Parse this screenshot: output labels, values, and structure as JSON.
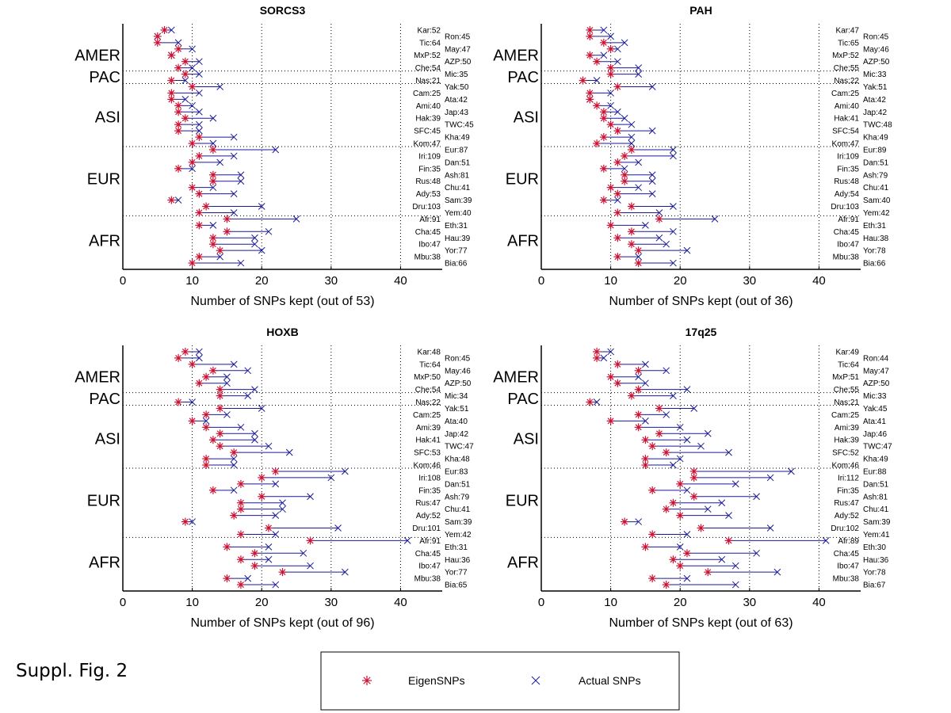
{
  "footer": {
    "figure_label": "Suppl. Fig. 2"
  },
  "legend": {
    "eigen_label": "EigenSNPs",
    "actual_label": "Actual SNPs",
    "eigen_color": "#cc1133",
    "actual_color": "#1a1a99"
  },
  "chart_data": [
    {
      "type": "dot-range",
      "title": "SORCS3",
      "xlabel": "Number of SNPs kept (out of 53)",
      "xlim": [
        0,
        46
      ],
      "xticks": [
        0,
        10,
        20,
        30,
        40
      ],
      "grid": "dotted",
      "groups": [
        "AMER",
        "PAC",
        "ASI",
        "EUR",
        "AFR"
      ],
      "populations": [
        "Kar:52",
        "Ron:45",
        "Tic:64",
        "May:47",
        "MxP:52",
        "AZP:50",
        "Che:54",
        "Mic:35",
        "Nas:21",
        "Yak:50",
        "Cam:25",
        "Ata:42",
        "Ami:40",
        "Jap:43",
        "Hak:39",
        "TWC:45",
        "SFC:45",
        "Kha:49",
        "Kom:47",
        "Eur:87",
        "Iri:109",
        "Dan:51",
        "Fin:35",
        "Ash:81",
        "Rus:48",
        "Chu:41",
        "Ady:53",
        "Sam:39",
        "Dru:103",
        "Yem:40",
        "Afr:91",
        "Eth:31",
        "Cha:45",
        "Hau:39",
        "Ibo:47",
        "Yor:77",
        "Mbu:38",
        "Bia:66"
      ],
      "eigen": [
        6,
        5,
        5,
        8,
        7,
        9,
        8,
        9,
        7,
        10,
        7,
        7,
        8,
        8,
        9,
        8,
        8,
        11,
        10,
        13,
        11,
        10,
        8,
        13,
        13,
        10,
        11,
        7,
        12,
        11,
        15,
        11,
        15,
        13,
        13,
        14,
        11,
        10
      ],
      "actual": [
        7,
        5,
        8,
        10,
        7,
        11,
        10,
        11,
        9,
        14,
        11,
        9,
        10,
        11,
        13,
        11,
        11,
        16,
        13,
        22,
        16,
        14,
        10,
        17,
        17,
        13,
        16,
        8,
        20,
        16,
        25,
        13,
        21,
        19,
        19,
        20,
        14,
        17
      ]
    },
    {
      "type": "dot-range",
      "title": "PAH",
      "xlabel": "Number of SNPs kept (out of 36)",
      "xlim": [
        0,
        46
      ],
      "xticks": [
        0,
        10,
        20,
        30,
        40
      ],
      "grid": "dotted",
      "groups": [
        "AMER",
        "PAC",
        "ASI",
        "EUR",
        "AFR"
      ],
      "populations": [
        "Kar:47",
        "Ron:45",
        "Tic:65",
        "May:46",
        "MxP:52",
        "AZP:50",
        "Che:55",
        "Mic:33",
        "Nas:22",
        "Yak:51",
        "Cam:25",
        "Ata:42",
        "Ami:40",
        "Jap:42",
        "Hak:41",
        "TWC:48",
        "SFC:54",
        "Kha:49",
        "Kom:47",
        "Eur:89",
        "Iri:109",
        "Dan:51",
        "Fin:35",
        "Ash:79",
        "Rus:48",
        "Chu:41",
        "Ady:54",
        "Sam:40",
        "Dru:103",
        "Yem:42",
        "Afr:91",
        "Eth:31",
        "Cha:45",
        "Hau:38",
        "Ibo:47",
        "Yor:78",
        "Mbu:38",
        "Bia:66"
      ],
      "eigen": [
        7,
        7,
        9,
        10,
        7,
        8,
        10,
        10,
        6,
        11,
        7,
        7,
        8,
        9,
        9,
        10,
        11,
        9,
        8,
        13,
        12,
        11,
        9,
        12,
        12,
        10,
        11,
        9,
        13,
        11,
        17,
        10,
        13,
        11,
        13,
        14,
        11,
        14
      ],
      "actual": [
        9,
        10,
        12,
        11,
        9,
        11,
        14,
        14,
        8,
        16,
        10,
        7,
        10,
        11,
        12,
        13,
        16,
        13,
        13,
        19,
        19,
        14,
        12,
        16,
        16,
        14,
        16,
        11,
        19,
        17,
        25,
        15,
        19,
        17,
        18,
        21,
        14,
        19
      ]
    },
    {
      "type": "dot-range",
      "title": "HOXB",
      "xlabel": "Number of SNPs kept (out of 96)",
      "xlim": [
        0,
        46
      ],
      "xticks": [
        0,
        10,
        20,
        30,
        40
      ],
      "grid": "dotted",
      "groups": [
        "AMER",
        "PAC",
        "ASI",
        "EUR",
        "AFR"
      ],
      "populations": [
        "Kar:48",
        "Ron:45",
        "Tic:64",
        "May:46",
        "MxP:50",
        "AZP:50",
        "Che:54",
        "Mic:34",
        "Nas:22",
        "Yak:51",
        "Cam:25",
        "Ata:40",
        "Ami:39",
        "Jap:42",
        "Hak:41",
        "TWC:47",
        "SFC:53",
        "Kha:48",
        "Kom:46",
        "Eur:83",
        "Iri:108",
        "Dan:51",
        "Fin:35",
        "Ash:79",
        "Rus:47",
        "Chu:41",
        "Ady:52",
        "Sam:39",
        "Dru:101",
        "Yem:42",
        "Afr:91",
        "Eth:31",
        "Cha:45",
        "Hau:36",
        "Ibo:47",
        "Yor:77",
        "Mbu:38",
        "Bia:65"
      ],
      "eigen": [
        9,
        8,
        10,
        13,
        12,
        11,
        14,
        14,
        8,
        14,
        12,
        10,
        12,
        14,
        13,
        14,
        16,
        12,
        12,
        22,
        20,
        17,
        13,
        20,
        17,
        17,
        16,
        9,
        21,
        17,
        27,
        15,
        19,
        17,
        19,
        23,
        15,
        17
      ],
      "actual": [
        11,
        11,
        16,
        18,
        15,
        15,
        19,
        18,
        10,
        20,
        15,
        12,
        17,
        19,
        19,
        21,
        24,
        16,
        16,
        32,
        30,
        22,
        16,
        27,
        23,
        23,
        22,
        10,
        31,
        22,
        41,
        21,
        26,
        21,
        27,
        32,
        18,
        22
      ]
    },
    {
      "type": "dot-range",
      "title": "17q25",
      "xlabel": "Number of SNPs kept (out of 63)",
      "xlim": [
        0,
        46
      ],
      "xticks": [
        0,
        10,
        20,
        30,
        40
      ],
      "grid": "dotted",
      "groups": [
        "AMER",
        "PAC",
        "ASI",
        "EUR",
        "AFR"
      ],
      "populations": [
        "Kar:49",
        "Ron:44",
        "Tic:64",
        "May:47",
        "MxP:51",
        "AZP:50",
        "Che:55",
        "Mic:33",
        "Nas:21",
        "Yak:45",
        "Cam:25",
        "Ata:41",
        "Ami:39",
        "Jap:46",
        "Hak:39",
        "TWC:47",
        "SFC:52",
        "Kha:49",
        "Kom:46",
        "Eur:88",
        "Iri:112",
        "Dan:51",
        "Fin:35",
        "Ash:81",
        "Rus:47",
        "Chu:41",
        "Ady:52",
        "Sam:39",
        "Dru:102",
        "Yem:41",
        "Afr:89",
        "Eth:30",
        "Cha:45",
        "Hau:36",
        "Ibo:47",
        "Yor:78",
        "Mbu:38",
        "Bia:67"
      ],
      "eigen": [
        8,
        8,
        11,
        14,
        10,
        11,
        14,
        13,
        7,
        17,
        14,
        10,
        14,
        17,
        15,
        16,
        18,
        15,
        15,
        22,
        22,
        20,
        16,
        22,
        19,
        18,
        20,
        12,
        23,
        16,
        27,
        15,
        21,
        19,
        20,
        24,
        16,
        18
      ],
      "actual": [
        10,
        9,
        15,
        18,
        14,
        15,
        21,
        19,
        8,
        22,
        18,
        15,
        20,
        24,
        21,
        23,
        27,
        20,
        19,
        36,
        33,
        28,
        21,
        31,
        26,
        24,
        27,
        14,
        33,
        21,
        41,
        20,
        31,
        26,
        28,
        34,
        21,
        28
      ]
    }
  ]
}
